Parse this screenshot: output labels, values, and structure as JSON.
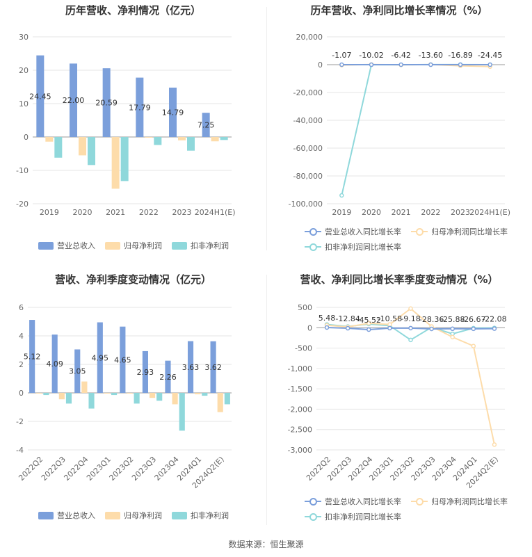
{
  "source_label": "数据来源：恒生聚源",
  "colors": {
    "revenue": "#7b9fdb",
    "net_profit": "#fddcaa",
    "deducted": "#8fd8db",
    "grid": "#e6e6e6",
    "axis": "#666666"
  },
  "chart_data": [
    {
      "type": "bar",
      "title": "历年营收、净利情况（亿元）",
      "categories": [
        "2019",
        "2020",
        "2021",
        "2022",
        "2023",
        "2024H1(E)"
      ],
      "series": [
        {
          "name": "营业总收入",
          "values": [
            24.45,
            22.0,
            20.59,
            17.79,
            14.79,
            7.25
          ],
          "labels": [
            "24.45",
            "22.00",
            "20.59",
            "17.79",
            "14.79",
            "7.25"
          ]
        },
        {
          "name": "归母净利润",
          "values": [
            -1.4,
            -5.5,
            -15.5,
            -0.2,
            -1.0,
            -1.3
          ]
        },
        {
          "name": "扣非净利润",
          "values": [
            -6.2,
            -8.4,
            -13.2,
            -2.4,
            -4.1,
            -0.9
          ]
        }
      ],
      "ylim": [
        -20,
        30
      ],
      "yticks": [
        "30",
        "20",
        "10",
        "0",
        "-10",
        "-20"
      ],
      "grid": true,
      "legend": "bottom"
    },
    {
      "type": "line",
      "title": "历年营收、净利同比增长率情况（%）",
      "categories": [
        "2019",
        "2020",
        "2021",
        "2022",
        "2023",
        "2024H1(E)"
      ],
      "series": [
        {
          "name": "营业总收入同比增长率",
          "values": [
            -1.07,
            -10.02,
            -6.42,
            -13.6,
            -16.89,
            -24.45
          ],
          "labels": [
            "-1.07",
            "-10.02",
            "-6.42",
            "-13.60",
            "-16.89",
            "-24.45"
          ]
        },
        {
          "name": "归母净利润同比增长率",
          "values": [
            -300,
            100,
            -150,
            90,
            -800,
            -1400
          ]
        },
        {
          "name": "扣非净利润同比增长率",
          "values": [
            -94000,
            -50,
            -60,
            80,
            80,
            -10
          ]
        }
      ],
      "ylim": [
        -100000,
        20000
      ],
      "yticks": [
        "20,000",
        "0",
        "-20,000",
        "-40,000",
        "-60,000",
        "-80,000",
        "-100,000"
      ],
      "grid": true,
      "legend": "bottom"
    },
    {
      "type": "bar",
      "title": "营收、净利季度变动情况（亿元）",
      "categories": [
        "2022Q2",
        "2022Q3",
        "2022Q4",
        "2023Q1",
        "2023Q2",
        "2023Q3",
        "2023Q4",
        "2024Q1",
        "2024Q2(E)"
      ],
      "series": [
        {
          "name": "营业总收入",
          "values": [
            5.12,
            4.09,
            3.05,
            4.95,
            4.65,
            2.93,
            2.26,
            3.63,
            3.62
          ],
          "labels": [
            "5.12",
            "4.09",
            "3.05",
            "4.95",
            "4.65",
            "2.93",
            "2.26",
            "3.63",
            "3.62"
          ]
        },
        {
          "name": "归母净利润",
          "values": [
            -0.05,
            -0.45,
            0.8,
            -0.05,
            -0.05,
            -0.35,
            -0.8,
            -0.1,
            -1.35
          ]
        },
        {
          "name": "扣非净利润",
          "values": [
            -0.15,
            -0.75,
            -1.1,
            -0.15,
            -0.75,
            -0.55,
            -2.65,
            -0.2,
            -0.8
          ]
        }
      ],
      "ylim": [
        -4,
        6
      ],
      "yticks": [
        "6",
        "4",
        "2",
        "0",
        "-2",
        "-4"
      ],
      "grid": true,
      "legend": "bottom"
    },
    {
      "type": "line",
      "title": "营收、净利同比增长率季度变动情况（%）",
      "categories": [
        "2022Q2",
        "2022Q3",
        "2022Q4",
        "2023Q1",
        "2023Q2",
        "2023Q3",
        "2023Q4",
        "2024Q1",
        "2024Q2(E)"
      ],
      "series": [
        {
          "name": "营业总收入同比增长率",
          "values": [
            5.48,
            -12.84,
            -45.52,
            -10.58,
            -9.18,
            -28.36,
            -25.88,
            -26.67,
            -22.08
          ],
          "labels": [
            "5.48",
            "-12.84",
            "-45.52",
            "-10.58",
            "-9.18",
            "-28.36",
            "-25.88",
            "-26.67",
            "-22.08"
          ]
        },
        {
          "name": "归母净利润同比增长率",
          "values": [
            60,
            20,
            110,
            80,
            470,
            30,
            -230,
            -450,
            -2870
          ]
        },
        {
          "name": "扣非净利润同比增长率",
          "values": [
            80,
            30,
            90,
            50,
            -300,
            10,
            -150,
            -10,
            -5
          ]
        }
      ],
      "ylim": [
        -3000,
        500
      ],
      "yticks": [
        "500",
        "0",
        "-500",
        "-1,000",
        "-1,500",
        "-2,000",
        "-2,500",
        "-3,000"
      ],
      "grid": true,
      "legend": "bottom"
    }
  ]
}
